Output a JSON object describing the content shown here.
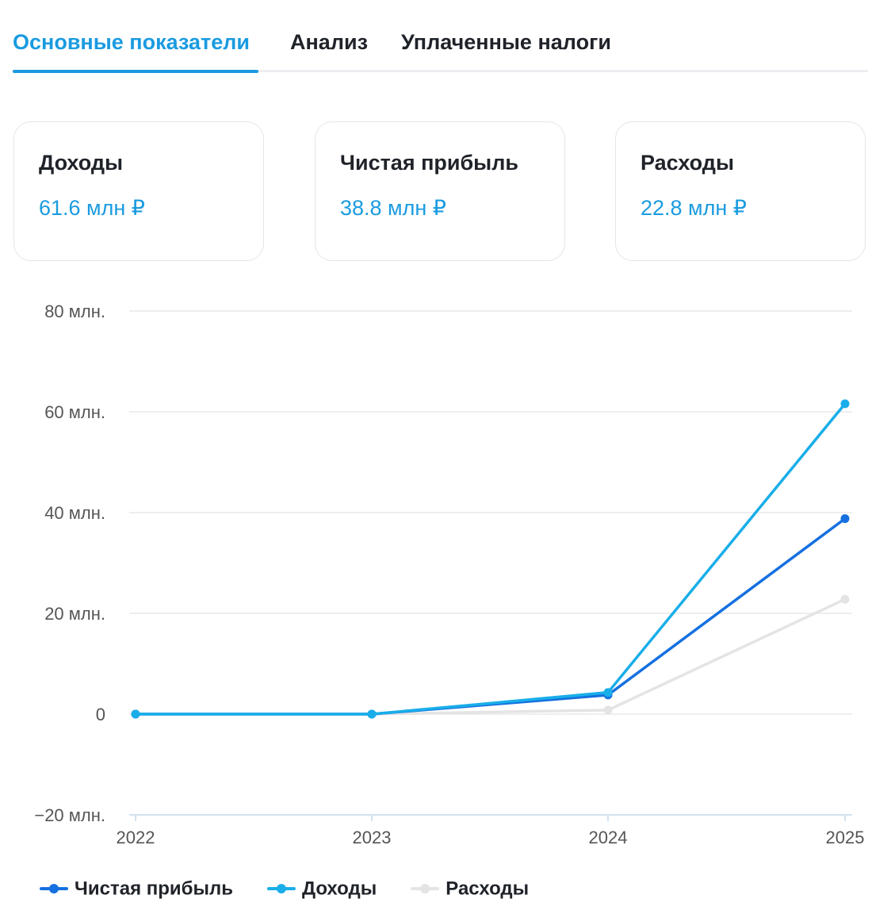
{
  "tabs": [
    "Основные показатели",
    "Анализ",
    "Уплаченные налоги"
  ],
  "cards": [
    {
      "label": "Доходы",
      "value": "61.6 млн ₽"
    },
    {
      "label": "Чистая прибыль",
      "value": "38.8 млн ₽"
    },
    {
      "label": "Расходы",
      "value": "22.8 млн ₽"
    }
  ],
  "chart_data": {
    "type": "line",
    "categories": [
      "2022",
      "2023",
      "2024",
      "2025"
    ],
    "series": [
      {
        "name": "Чистая прибыль",
        "color": "#1570e0",
        "values": [
          0,
          0,
          3.8,
          38.8
        ]
      },
      {
        "name": "Доходы",
        "color": "#19aee9",
        "values": [
          0,
          0,
          4.3,
          61.6
        ]
      },
      {
        "name": "Расходы",
        "color": "#e4e4e4",
        "values": [
          0,
          0,
          0.8,
          22.8
        ]
      }
    ],
    "ylim": [
      -20,
      80
    ],
    "yticks": [
      {
        "value": -20,
        "label": "−20 млн."
      },
      0,
      {
        "value": 20,
        "label": "20 млн."
      },
      {
        "value": 40,
        "label": "40 млн."
      },
      {
        "value": 60,
        "label": "60 млн."
      },
      {
        "value": 80,
        "label": "80 млн."
      }
    ],
    "grid": true
  }
}
